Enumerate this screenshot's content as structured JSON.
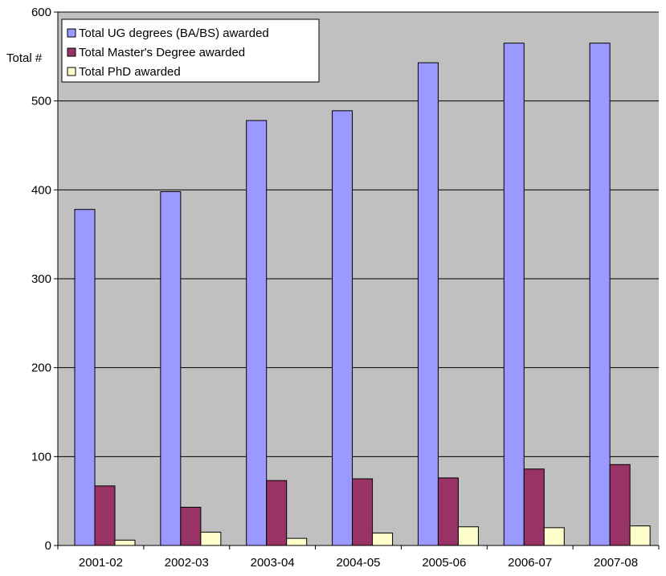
{
  "chart_data": {
    "type": "bar",
    "title": "",
    "xlabel": "",
    "ylabel": "Total #",
    "ylim": [
      0,
      600
    ],
    "yticks": [
      0,
      100,
      200,
      300,
      400,
      500,
      600
    ],
    "grid": true,
    "legend_position": "top-left",
    "plot_background": "#c0c0c0",
    "categories": [
      "2001-02",
      "2002-03",
      "2003-04",
      "2004-05",
      "2005-06",
      "2006-07",
      "2007-08"
    ],
    "series": [
      {
        "name": "Total UG degrees (BA/BS) awarded",
        "color": "#9999ff",
        "values": [
          378,
          398,
          478,
          489,
          543,
          565,
          565
        ]
      },
      {
        "name": "Total Master's Degree awarded",
        "color": "#993366",
        "values": [
          67,
          43,
          73,
          75,
          76,
          86,
          91
        ]
      },
      {
        "name": "Total PhD awarded",
        "color": "#ffffcc",
        "values": [
          6,
          15,
          8,
          14,
          21,
          20,
          22
        ]
      }
    ]
  }
}
